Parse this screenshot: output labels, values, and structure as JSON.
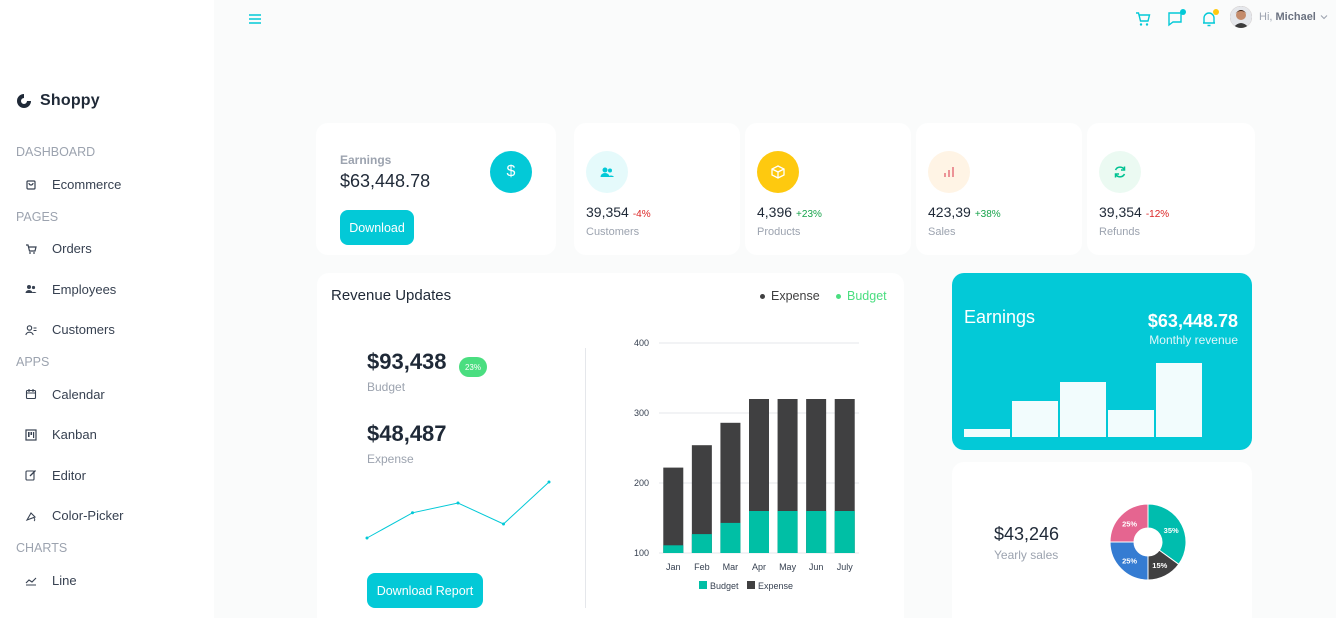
{
  "brand": {
    "name": "Shoppy"
  },
  "sidebar": {
    "sections": [
      {
        "title": "Dashboard",
        "items": [
          {
            "label": "Ecommerce",
            "icon": "bag-icon"
          }
        ]
      },
      {
        "title": "Pages",
        "items": [
          {
            "label": "Orders",
            "icon": "cart-icon"
          },
          {
            "label": "Employees",
            "icon": "people-icon"
          },
          {
            "label": "Customers",
            "icon": "user-icon"
          }
        ]
      },
      {
        "title": "Apps",
        "items": [
          {
            "label": "Calendar",
            "icon": "calendar-icon"
          },
          {
            "label": "Kanban",
            "icon": "kanban-icon"
          },
          {
            "label": "Editor",
            "icon": "edit-icon"
          },
          {
            "label": "Color-Picker",
            "icon": "dropper-icon"
          }
        ]
      },
      {
        "title": "Charts",
        "items": [
          {
            "label": "Line",
            "icon": "line-chart-icon"
          }
        ]
      }
    ]
  },
  "topbar": {
    "greeting": "Hi,",
    "user_name": "Michael"
  },
  "earnings_card": {
    "label": "Earnings",
    "value": "$63,448.78",
    "button": "Download",
    "icon": "$"
  },
  "stats": [
    {
      "value": "39,354",
      "percent": "-4%",
      "pct_color": "#dc2626",
      "label": "Customers",
      "icon_color": "#03c9d7",
      "bg": "#e5fafb"
    },
    {
      "value": "4,396",
      "percent": "+23%",
      "pct_color": "#16a34a",
      "label": "Products",
      "icon_color": "#ffffff",
      "bg": "#fec90f"
    },
    {
      "value": "423,39",
      "percent": "+38%",
      "pct_color": "#16a34a",
      "label": "Sales",
      "icon_color": "#e46a76",
      "bg": "#fff4e5"
    },
    {
      "value": "39,354",
      "percent": "-12%",
      "pct_color": "#dc2626",
      "label": "Refunds",
      "icon_color": "#00c292",
      "bg": "#ebfaf2"
    }
  ],
  "revenue": {
    "title": "Revenue Updates",
    "legend": {
      "expense": "Expense",
      "budget": "Budget"
    },
    "budget_value": "$93,438",
    "budget_label": "Budget",
    "budget_badge": "23%",
    "expense_value": "$48,487",
    "expense_label": "Expense",
    "button": "Download Report",
    "legend_bottom": {
      "budget": "Budget",
      "expense": "Expense"
    }
  },
  "earnings_panel": {
    "title": "Earnings",
    "value": "$63,448.78",
    "sub": "Monthly revenue"
  },
  "yearly": {
    "value": "$43,246",
    "label": "Yearly sales"
  },
  "chart_data": [
    {
      "type": "bar",
      "categories": [
        "Jan",
        "Feb",
        "Mar",
        "Apr",
        "May",
        "Jun",
        "July"
      ],
      "series": [
        {
          "name": "Budget",
          "values": [
            111,
            127,
            143,
            160,
            160,
            160,
            160
          ],
          "color": "#00bfa5"
        },
        {
          "name": "Expense",
          "values": [
            222,
            254,
            286,
            320,
            320,
            320,
            320
          ],
          "color": "#404041"
        }
      ],
      "stacked": false,
      "yticks": [
        100,
        200,
        300,
        400
      ],
      "ylim": [
        100,
        400
      ],
      "legend": "bottom"
    },
    {
      "type": "line",
      "values": [
        10,
        28,
        35,
        20,
        50
      ],
      "color": "#03c9d7"
    },
    {
      "type": "bar",
      "values": [
        8,
        36,
        55,
        27,
        74
      ],
      "color": "#ffffff"
    },
    {
      "type": "pie",
      "slices": [
        {
          "label": "35%",
          "value": 35,
          "color": "#00bdae"
        },
        {
          "label": "15%",
          "value": 15,
          "color": "#404041"
        },
        {
          "label": "25%",
          "value": 25,
          "color": "#357cd2"
        },
        {
          "label": "25%",
          "value": 25,
          "color": "#e56590"
        }
      ]
    }
  ]
}
